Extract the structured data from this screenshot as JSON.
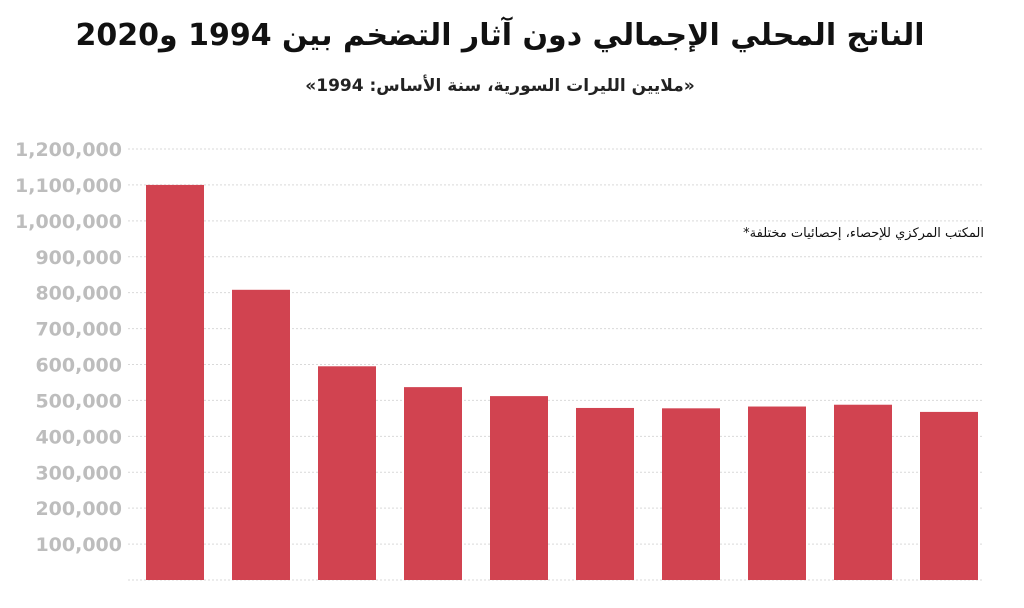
{
  "chart_data": {
    "type": "bar",
    "title": "الناتج المحلي الإجمالي دون آثار التضخم بين 1994 و2020",
    "subtitle": "«ملايين الليرات السورية، سنة الأساس: 1994»",
    "note": "المكتب المركزي للإحصاء، إحصائيات مختلفة*",
    "categories": [
      "",
      "",
      "",
      "",
      "",
      "",
      "",
      "",
      "",
      ""
    ],
    "values": [
      1100000,
      808000,
      595000,
      537000,
      512000,
      479000,
      478000,
      483000,
      488000,
      468000
    ],
    "ylim": [
      0,
      1200000
    ],
    "yticks": [
      100000,
      200000,
      300000,
      400000,
      500000,
      600000,
      700000,
      800000,
      900000,
      1000000,
      1100000,
      1200000
    ],
    "ytick_labels": [
      "100,000",
      "200,000",
      "300,000",
      "400,000",
      "500,000",
      "600,000",
      "700,000",
      "800,000",
      "900,000",
      "1,000,000",
      "1,100,000",
      "1,200,000"
    ],
    "grid": true,
    "xlabel": "",
    "ylabel": "",
    "bar_color": "#d14350",
    "grid_color": "#d9d9d9",
    "tick_color": "#bdbdbd"
  }
}
